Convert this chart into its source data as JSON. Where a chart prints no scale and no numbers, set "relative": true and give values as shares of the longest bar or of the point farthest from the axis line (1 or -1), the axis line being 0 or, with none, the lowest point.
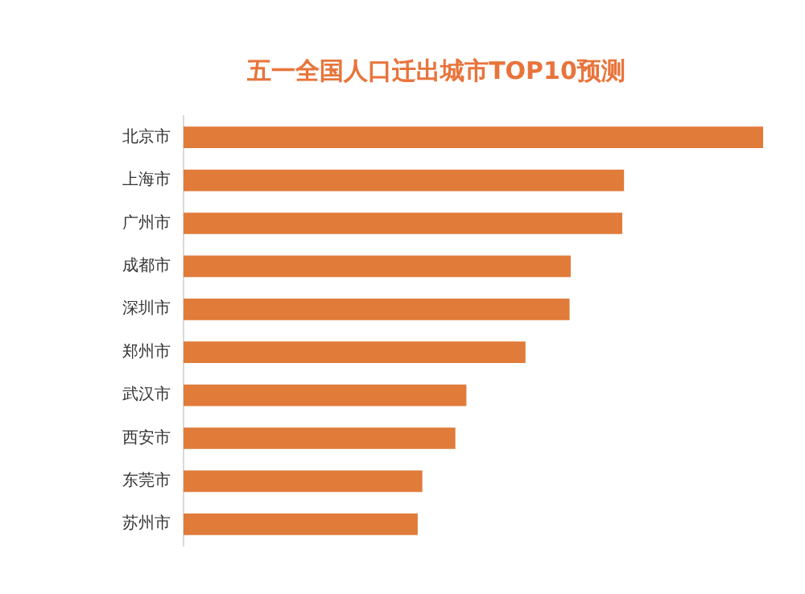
{
  "chart_data": {
    "type": "bar",
    "orientation": "horizontal",
    "relative": true,
    "title": "五一全国人口迁出城市TOP10预测",
    "categories": [
      "北京市",
      "上海市",
      "广州市",
      "成都市",
      "深圳市",
      "郑州市",
      "武汉市",
      "西安市",
      "东莞市",
      "苏州市"
    ],
    "values": [
      1,
      0.76,
      0.757,
      0.668,
      0.666,
      0.59,
      0.488,
      0.469,
      0.412,
      0.404
    ],
    "color": "#e07b39",
    "legend": false
  }
}
